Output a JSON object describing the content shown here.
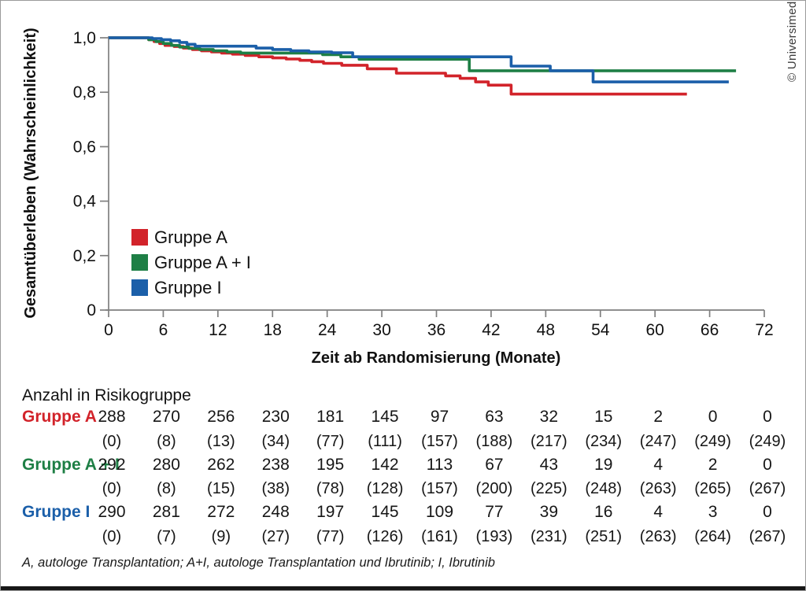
{
  "copyright": "© Universimed",
  "chart_data": {
    "type": "line",
    "subtype": "kaplan_meier_step",
    "title": "",
    "xlabel": "Zeit ab Randomisierung (Monate)",
    "ylabel": "Gesamtüberleben (Wahrscheinlichkeit)",
    "xlim": [
      0,
      72
    ],
    "ylim": [
      0,
      1.0
    ],
    "grid": false,
    "legend_position": "inside-lower-left",
    "x_ticks": [
      "0",
      "6",
      "12",
      "18",
      "24",
      "30",
      "36",
      "42",
      "48",
      "54",
      "60",
      "66",
      "72"
    ],
    "x_tick_values": [
      0,
      6,
      12,
      18,
      24,
      30,
      36,
      42,
      48,
      54,
      60,
      66,
      72
    ],
    "y_ticks": [
      "1,0",
      "0,8",
      "0,6",
      "0,4",
      "0,2",
      "0"
    ],
    "y_tick_values": [
      1.0,
      0.8,
      0.6,
      0.4,
      0.2,
      0
    ],
    "legend": [
      "Gruppe A",
      "Gruppe A + I",
      "Gruppe I"
    ],
    "series": [
      {
        "name": "Gruppe A",
        "color": "#d2232a",
        "steps": [
          [
            0,
            1.0
          ],
          [
            4.4,
            0.993
          ],
          [
            5.0,
            0.986
          ],
          [
            5.6,
            0.979
          ],
          [
            6.2,
            0.972
          ],
          [
            7.2,
            0.968
          ],
          [
            8.2,
            0.962
          ],
          [
            9.2,
            0.957
          ],
          [
            10.2,
            0.952
          ],
          [
            11.3,
            0.948
          ],
          [
            12.4,
            0.944
          ],
          [
            13.6,
            0.94
          ],
          [
            15.0,
            0.935
          ],
          [
            16.5,
            0.93
          ],
          [
            18.0,
            0.926
          ],
          [
            19.5,
            0.922
          ],
          [
            21.0,
            0.917
          ],
          [
            22.3,
            0.912
          ],
          [
            23.6,
            0.906
          ],
          [
            25.6,
            0.899
          ],
          [
            28.4,
            0.886
          ],
          [
            31.6,
            0.87
          ],
          [
            37.0,
            0.86
          ],
          [
            38.6,
            0.851
          ],
          [
            40.3,
            0.838
          ],
          [
            41.7,
            0.826
          ],
          [
            44.2,
            0.793
          ],
          [
            63.5,
            0.793
          ]
        ]
      },
      {
        "name": "Gruppe A+I",
        "color": "#1e7f45",
        "steps": [
          [
            0,
            1.0
          ],
          [
            4.4,
            0.993
          ],
          [
            5.2,
            0.986
          ],
          [
            6.0,
            0.979
          ],
          [
            6.9,
            0.972
          ],
          [
            7.8,
            0.966
          ],
          [
            8.8,
            0.961
          ],
          [
            10.0,
            0.957
          ],
          [
            11.5,
            0.952
          ],
          [
            13.0,
            0.948
          ],
          [
            14.5,
            0.944
          ],
          [
            23.5,
            0.938
          ],
          [
            25.5,
            0.93
          ],
          [
            27.5,
            0.921
          ],
          [
            39.6,
            0.879
          ],
          [
            68.9,
            0.879
          ]
        ]
      },
      {
        "name": "Gruppe I",
        "color": "#1b5fa9",
        "steps": [
          [
            0,
            1.0
          ],
          [
            4.8,
            0.997
          ],
          [
            5.8,
            0.993
          ],
          [
            6.8,
            0.989
          ],
          [
            7.8,
            0.983
          ],
          [
            8.6,
            0.976
          ],
          [
            9.5,
            0.969
          ],
          [
            16.2,
            0.962
          ],
          [
            18.0,
            0.957
          ],
          [
            20.0,
            0.952
          ],
          [
            22.0,
            0.948
          ],
          [
            24.5,
            0.945
          ],
          [
            26.8,
            0.93
          ],
          [
            44.2,
            0.896
          ],
          [
            48.5,
            0.879
          ],
          [
            53.2,
            0.838
          ],
          [
            68.1,
            0.838
          ]
        ]
      }
    ],
    "risk_table": {
      "title": "Anzahl in Risikogruppe",
      "rows": [
        {
          "label": "Gruppe A",
          "color": "#d2232a",
          "at_risk": [
            "288",
            "270",
            "256",
            "230",
            "181",
            "145",
            "97",
            "63",
            "32",
            "15",
            "2",
            "0",
            "0"
          ],
          "censored": [
            "(0)",
            "(8)",
            "(13)",
            "(34)",
            "(77)",
            "(111)",
            "(157)",
            "(188)",
            "(217)",
            "(234)",
            "(247)",
            "(249)",
            "(249)"
          ]
        },
        {
          "label": "Gruppe A + I",
          "color": "#1e7f45",
          "at_risk": [
            "292",
            "280",
            "262",
            "238",
            "195",
            "142",
            "113",
            "67",
            "43",
            "19",
            "4",
            "2",
            "0"
          ],
          "censored": [
            "(0)",
            "(8)",
            "(15)",
            "(38)",
            "(78)",
            "(128)",
            "(157)",
            "(200)",
            "(225)",
            "(248)",
            "(263)",
            "(265)",
            "(267)"
          ]
        },
        {
          "label": "Gruppe I",
          "color": "#1b5fa9",
          "at_risk": [
            "290",
            "281",
            "272",
            "248",
            "197",
            "145",
            "109",
            "77",
            "39",
            "16",
            "4",
            "3",
            "0"
          ],
          "censored": [
            "(0)",
            "(7)",
            "(9)",
            "(27)",
            "(77)",
            "(126)",
            "(161)",
            "(193)",
            "(231)",
            "(251)",
            "(263)",
            "(264)",
            "(267)"
          ]
        }
      ]
    },
    "footnote": "A, autologe Transplantation; A+I, autologe Transplantation und Ibrutinib; I, Ibrutinib"
  }
}
